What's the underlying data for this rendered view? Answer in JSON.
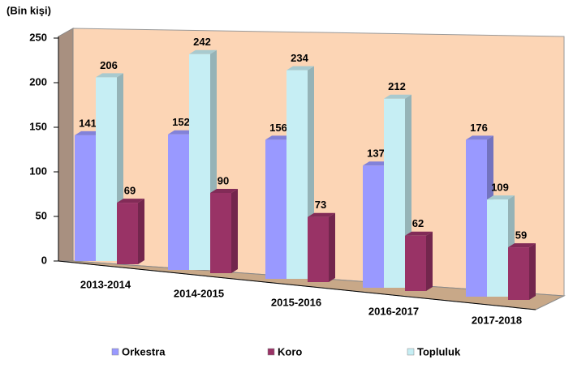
{
  "chart_data": {
    "type": "bar",
    "ylabel": "(Bin kişi)",
    "categories": [
      "2013-2014",
      "2014-2015",
      "2015-2016",
      "2016-2017",
      "2017-2018"
    ],
    "series": [
      {
        "name": "Orkestra",
        "color": "#9999ff",
        "values": [
          141,
          152,
          156,
          137,
          176
        ]
      },
      {
        "name": "Koro",
        "color": "#993366",
        "values": [
          69,
          90,
          73,
          62,
          59
        ]
      },
      {
        "name": "Topluluk",
        "color": "#c6eef4",
        "values": [
          206,
          242,
          234,
          212,
          109
        ]
      }
    ],
    "ylim": [
      0,
      250
    ],
    "yticks": [
      0,
      50,
      100,
      150,
      200,
      250
    ],
    "legend": "bottom"
  }
}
